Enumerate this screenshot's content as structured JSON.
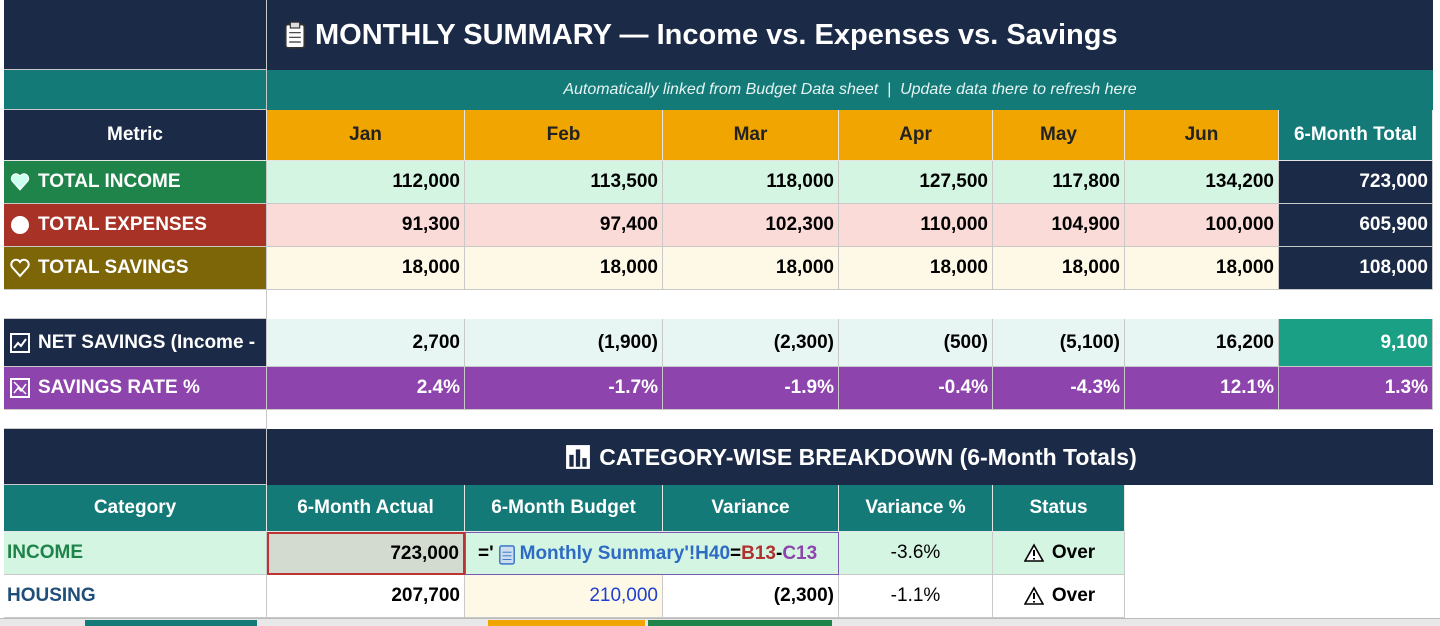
{
  "title": "MONTHLY SUMMARY — Income vs. Expenses vs. Savings",
  "subtitle": "Automatically linked from Budget Data sheet  |  Update data there to refresh here",
  "summary": {
    "header": [
      "Metric",
      "Jan",
      "Feb",
      "Mar",
      "Apr",
      "May",
      "Jun",
      "6-Month Total"
    ],
    "rows": [
      {
        "label": "TOTAL INCOME",
        "values": [
          "112,000",
          "113,500",
          "118,000",
          "127,500",
          "117,800",
          "134,200"
        ],
        "total": "723,000"
      },
      {
        "label": "TOTAL EXPENSES",
        "values": [
          "91,300",
          "97,400",
          "102,300",
          "110,000",
          "104,900",
          "100,000"
        ],
        "total": "605,900"
      },
      {
        "label": "TOTAL SAVINGS",
        "values": [
          "18,000",
          "18,000",
          "18,000",
          "18,000",
          "18,000",
          "18,000"
        ],
        "total": "108,000"
      },
      {
        "label": "NET SAVINGS (Income -",
        "values": [
          "2,700",
          "(1,900)",
          "(2,300)",
          "(500)",
          "(5,100)",
          "16,200"
        ],
        "total": "9,100"
      },
      {
        "label": "SAVINGS RATE %",
        "values": [
          "2.4%",
          "-1.7%",
          "-1.9%",
          "-0.4%",
          "-4.3%",
          "12.1%"
        ],
        "total": "1.3%"
      }
    ]
  },
  "category": {
    "title": "CATEGORY-WISE BREAKDOWN (6-Month Totals)",
    "header": [
      "Category",
      "6-Month Actual",
      "6-Month Budget",
      "Variance",
      "Variance %",
      "Status"
    ],
    "rows": [
      {
        "category": "INCOME",
        "actual": "723,000",
        "formula": [
          "='",
          "Monthly Summary'!H40",
          "=",
          "B13",
          "-",
          "C13"
        ],
        "variance_pct": "-3.6%",
        "status": "Over"
      },
      {
        "category": "HOUSING",
        "actual": "207,700",
        "budget": "210,000",
        "variance": "(2,300)",
        "variance_pct": "-1.1%",
        "status": "Over"
      }
    ]
  }
}
